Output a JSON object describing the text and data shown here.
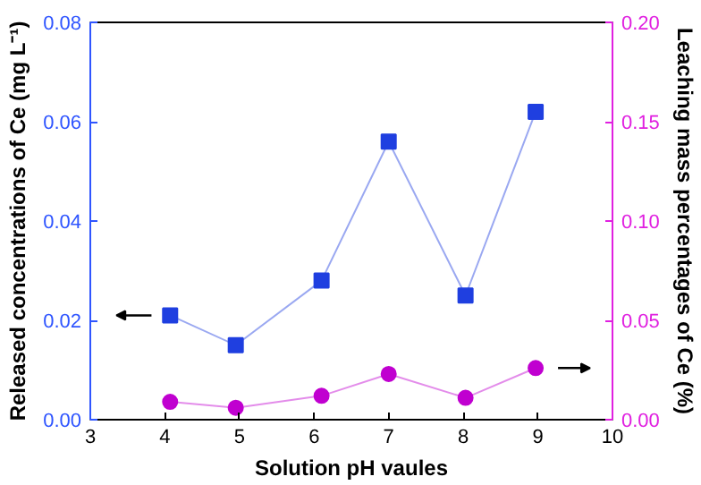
{
  "chart_data": {
    "type": "line",
    "xlabel": "Solution pH vaules",
    "ylabel": "Released concentrations of Ce (mg L⁻¹)",
    "y2label": "Leaching mass percentages of Ce (%)",
    "xlim": [
      3,
      10
    ],
    "xticks": [
      3,
      4,
      5,
      6,
      7,
      8,
      9,
      10
    ],
    "ylim": [
      0,
      0.08
    ],
    "yticks": [
      {
        "value": 0,
        "label": "0.00"
      },
      0.02,
      0.04,
      0.06,
      0.08
    ],
    "y2lim": [
      0,
      0.2
    ],
    "y2ticks": [
      {
        "value": 0,
        "label": "0.00"
      },
      0.05,
      {
        "value": 0.1,
        "label": "0.10"
      },
      0.15,
      {
        "value": 0.2,
        "label": "0.20"
      }
    ],
    "grid": false,
    "series": [
      {
        "color": "#1f3fe0",
        "x": [
          4.07,
          4.95,
          6.1,
          7.0,
          8.03,
          8.97
        ],
        "values": [
          0.021,
          0.015,
          0.028,
          0.056,
          0.025,
          0.062
        ],
        "marker": "square"
      },
      {
        "color": "#c000d0",
        "x": [
          4.07,
          4.95,
          6.1,
          7.0,
          8.03,
          8.97
        ],
        "values": [
          0.009,
          0.006,
          0.012,
          0.023,
          0.011,
          0.026
        ],
        "marker": "circle",
        "axis": "y2"
      }
    ]
  }
}
